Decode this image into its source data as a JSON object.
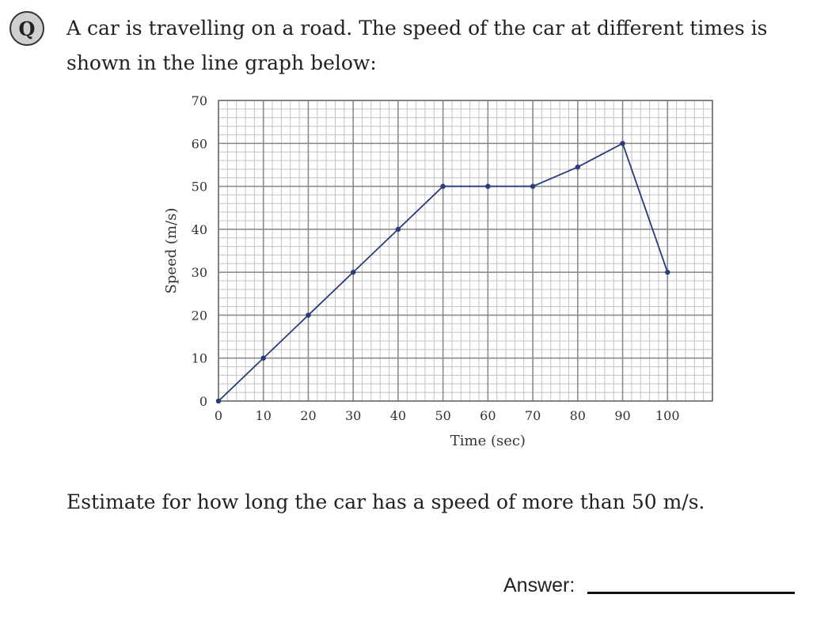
{
  "question": {
    "badge": "Q",
    "text": "A car is travelling on a road. The speed of the car at different times is shown in the line graph below:",
    "prompt": "Estimate for how long the car has a speed of more than 50 m/s.",
    "answer_label": "Answer:"
  },
  "chart_data": {
    "type": "line",
    "title": "",
    "xlabel": "Time (sec)",
    "ylabel": "Speed (m/s)",
    "xlim": [
      0,
      110
    ],
    "ylim": [
      0,
      70
    ],
    "x_ticks": [
      0,
      10,
      20,
      30,
      40,
      50,
      60,
      70,
      80,
      90,
      100
    ],
    "y_ticks": [
      0,
      10,
      20,
      30,
      40,
      50,
      60,
      70
    ],
    "grid": true,
    "x_minor_per_major": 5,
    "y_minor_per_major": 5,
    "series": [
      {
        "name": "Speed",
        "x": [
          0,
          10,
          20,
          30,
          40,
          50,
          60,
          70,
          80,
          90,
          100
        ],
        "y": [
          0,
          10,
          20,
          30,
          40,
          50,
          50,
          50,
          54.5,
          60,
          30
        ]
      }
    ],
    "line_color": "#2b3a7a",
    "grid_major_color": "#8c8c8c",
    "grid_minor_color": "#c4c4c4"
  }
}
